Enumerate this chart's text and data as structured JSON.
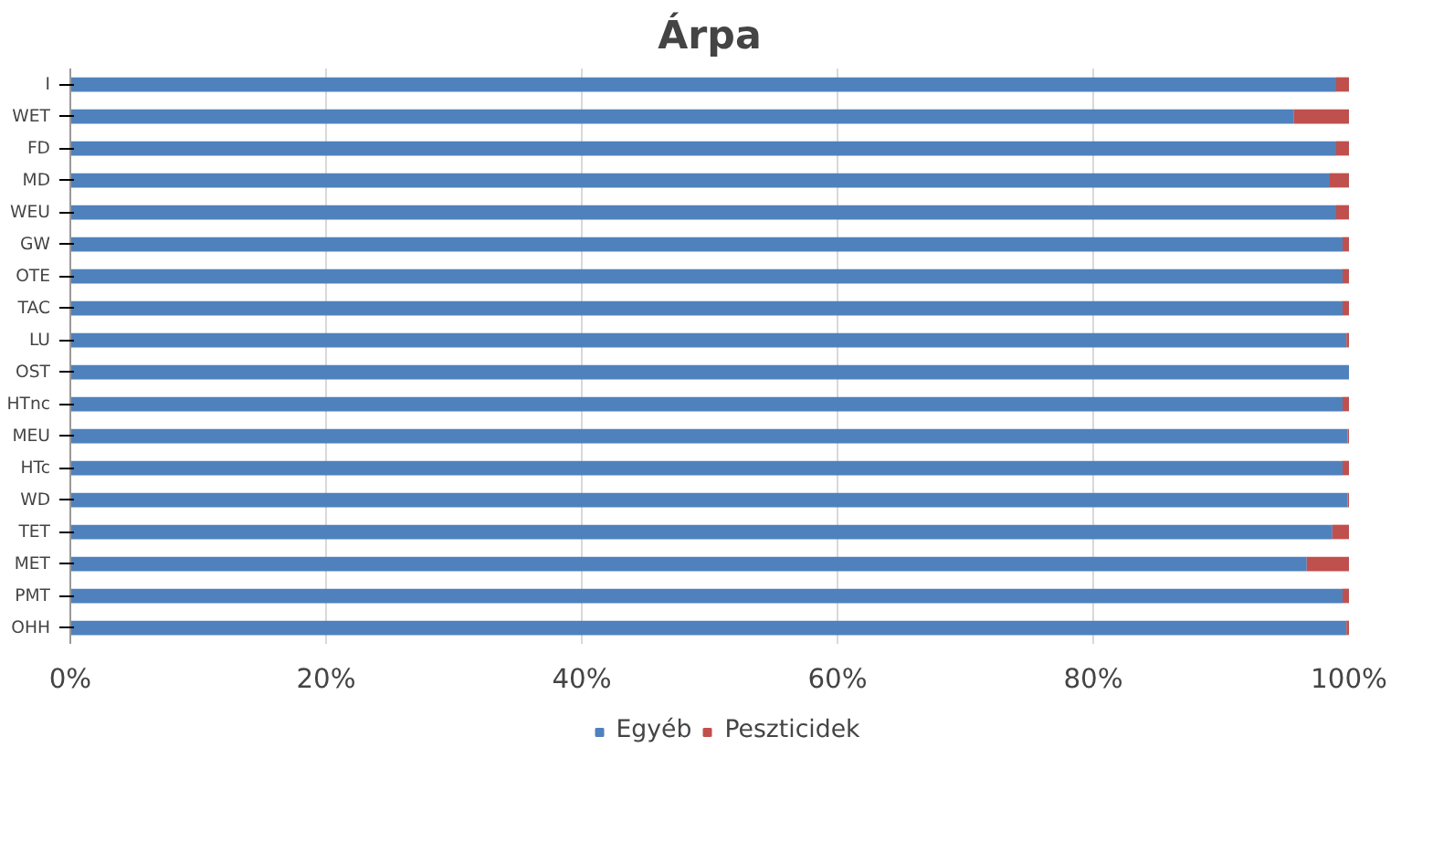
{
  "chart_data": {
    "type": "bar",
    "orientation": "horizontal",
    "stacked": true,
    "title": "Árpa",
    "categories": [
      "I",
      "WET",
      "FD",
      "MD",
      "WEU",
      "GW",
      "OTE",
      "TAC",
      "LU",
      "OST",
      "HTnc",
      "MEU",
      "HTc",
      "WD",
      "TET",
      "MET",
      "PMT",
      "OHH"
    ],
    "series": [
      {
        "name": "Egyéb",
        "color": "#4f81bd",
        "values": [
          99,
          95.7,
          99,
          98.5,
          99,
          99.5,
          99.5,
          99.5,
          99.8,
          100,
          99.5,
          99.9,
          99.5,
          99.9,
          98.7,
          96.7,
          99.5,
          99.8
        ]
      },
      {
        "name": "Peszticidek",
        "color": "#c0504d",
        "values": [
          1,
          4.3,
          1,
          1.5,
          1,
          0.5,
          0.5,
          0.5,
          0.2,
          0,
          0.5,
          0.1,
          0.5,
          0.1,
          1.3,
          3.3,
          0.5,
          0.2
        ]
      }
    ],
    "xlim": [
      0,
      100
    ],
    "xticks": [
      {
        "value": 0,
        "label": "0%"
      },
      {
        "value": 20,
        "label": "20%"
      },
      {
        "value": 40,
        "label": "40%"
      },
      {
        "value": 60,
        "label": "60%"
      },
      {
        "value": 80,
        "label": "80%"
      },
      {
        "value": 100,
        "label": "100%"
      }
    ],
    "grid": "x",
    "legend": "bottom"
  }
}
